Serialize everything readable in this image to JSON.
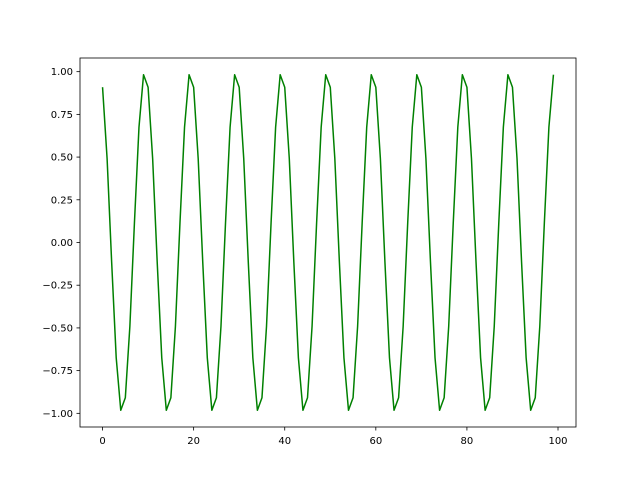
{
  "chart_data": {
    "type": "line",
    "title": "",
    "xlabel": "",
    "ylabel": "",
    "xlim": [
      -4.95,
      103.95
    ],
    "ylim": [
      -1.08,
      1.08
    ],
    "grid": false,
    "x_ticks": [
      "0",
      "20",
      "40",
      "60",
      "80",
      "100"
    ],
    "x_tick_values": [
      0,
      20,
      40,
      60,
      80,
      100
    ],
    "y_ticks": [
      "−1.00",
      "−0.75",
      "−0.50",
      "−0.25",
      "0.00",
      "0.25",
      "0.50",
      "0.75",
      "1.00"
    ],
    "y_tick_values": [
      -1,
      -0.75,
      -0.5,
      -0.25,
      0,
      0.25,
      0.5,
      0.75,
      1
    ],
    "series": [
      {
        "color": "#008000",
        "x_start": 0,
        "x_step": 1,
        "values": [
          0.909,
          0.491,
          -0.115,
          -0.675,
          -0.982,
          -0.909,
          -0.491,
          0.115,
          0.675,
          0.982,
          0.909,
          0.491,
          -0.115,
          -0.675,
          -0.982,
          -0.909,
          -0.491,
          0.115,
          0.675,
          0.982,
          0.909,
          0.491,
          -0.115,
          -0.675,
          -0.982,
          -0.909,
          -0.491,
          0.115,
          0.675,
          0.982,
          0.909,
          0.491,
          -0.115,
          -0.675,
          -0.982,
          -0.909,
          -0.491,
          0.115,
          0.675,
          0.982,
          0.909,
          0.491,
          -0.115,
          -0.675,
          -0.982,
          -0.909,
          -0.491,
          0.115,
          0.675,
          0.982,
          0.909,
          0.491,
          -0.115,
          -0.675,
          -0.982,
          -0.909,
          -0.491,
          0.115,
          0.675,
          0.982,
          0.909,
          0.491,
          -0.115,
          -0.675,
          -0.982,
          -0.909,
          -0.491,
          0.115,
          0.675,
          0.982,
          0.909,
          0.491,
          -0.115,
          -0.675,
          -0.982,
          -0.909,
          -0.491,
          0.115,
          0.675,
          0.982,
          0.909,
          0.491,
          -0.115,
          -0.675,
          -0.982,
          -0.909,
          -0.491,
          0.115,
          0.675,
          0.982,
          0.909,
          0.491,
          -0.115,
          -0.675,
          -0.982,
          -0.909,
          -0.491,
          0.115,
          0.675,
          0.982
        ]
      }
    ]
  }
}
